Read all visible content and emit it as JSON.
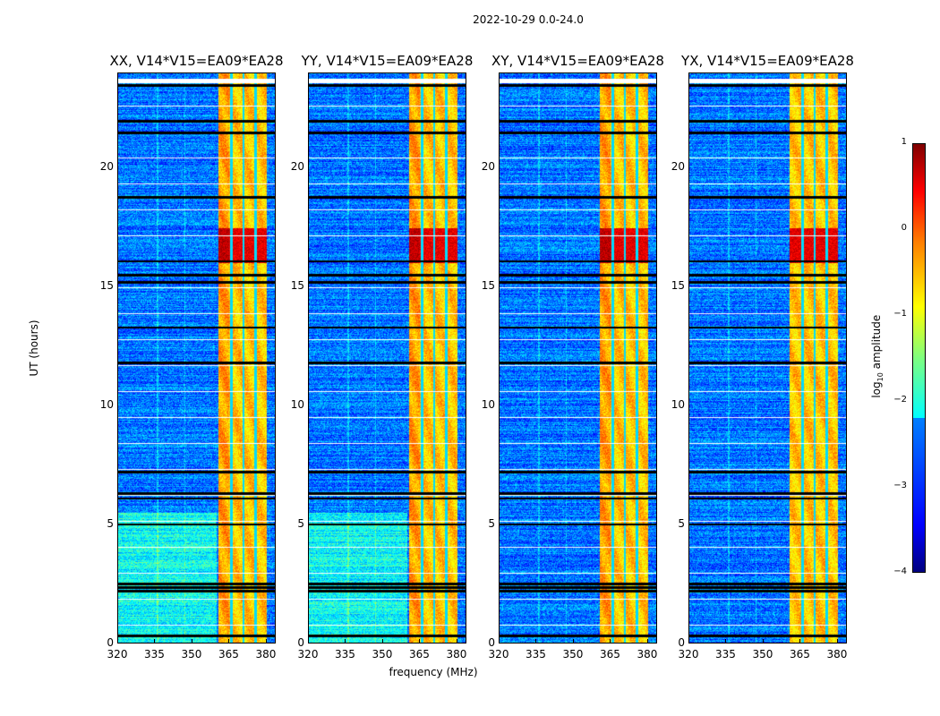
{
  "chart_data": {
    "type": "heatmap",
    "title": "2022-10-29 0.0-24.0",
    "xlabel": "frequency (MHz)",
    "ylabel": "UT (hours)",
    "xlim": [
      320,
      384
    ],
    "ylim": [
      0,
      24
    ],
    "xticks": [
      "320",
      "335",
      "350",
      "365",
      "380"
    ],
    "yticks": [
      "0",
      "5",
      "10",
      "15",
      "20"
    ],
    "panels": [
      {
        "title": "XX, V14*V15=EA09*EA28"
      },
      {
        "title": "YY, V14*V15=EA09*EA28"
      },
      {
        "title": "XY, V14*V15=EA09*EA28"
      },
      {
        "title": "YX, V14*V15=EA09*EA28"
      }
    ],
    "colorbar": {
      "label": "log10 amplitude",
      "range": [
        -4,
        1
      ],
      "ticks": [
        "1",
        "0",
        "−1",
        "−2",
        "−3",
        "−4"
      ],
      "colormap": "jet"
    },
    "features": {
      "background_level": -2.8,
      "rfi_band_mhz": [
        360.7,
        380.4
      ],
      "rfi_band_level": -0.6,
      "rfi_peak_hours": [
        16.0,
        17.5
      ],
      "rfi_peak_level": 0.5,
      "band_gap_channels_mhz": [
        366,
        371,
        376
      ],
      "flagged_hours": [
        0.3,
        2.2,
        2.35,
        2.5,
        5.0,
        6.1,
        6.3,
        7.2,
        11.8,
        13.3,
        15.2,
        15.5,
        16.1,
        18.8,
        21.5,
        22.0,
        23.5
      ]
    }
  }
}
